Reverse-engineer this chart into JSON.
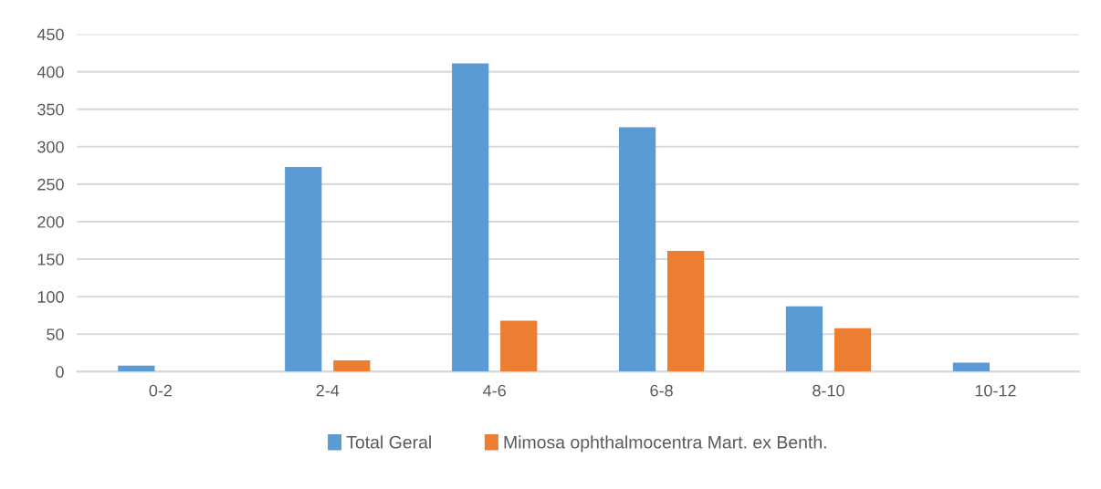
{
  "chart_data": {
    "type": "bar",
    "categories": [
      "0-2",
      "2-4",
      "4-6",
      "6-8",
      "8-10",
      "10-12"
    ],
    "series": [
      {
        "name": "Total Geral",
        "color": "#5b9bd5",
        "values": [
          8,
          273,
          411,
          326,
          87,
          12
        ]
      },
      {
        "name": "Mimosa ophthalmocentra Mart. ex Benth.",
        "color": "#ed7d31",
        "values": [
          null,
          15,
          68,
          161,
          58,
          null
        ]
      }
    ],
    "ylim": [
      0,
      450
    ],
    "yticks": [
      0,
      50,
      100,
      150,
      200,
      250,
      300,
      350,
      400,
      450
    ],
    "grid": "y",
    "legend": "bottom"
  }
}
